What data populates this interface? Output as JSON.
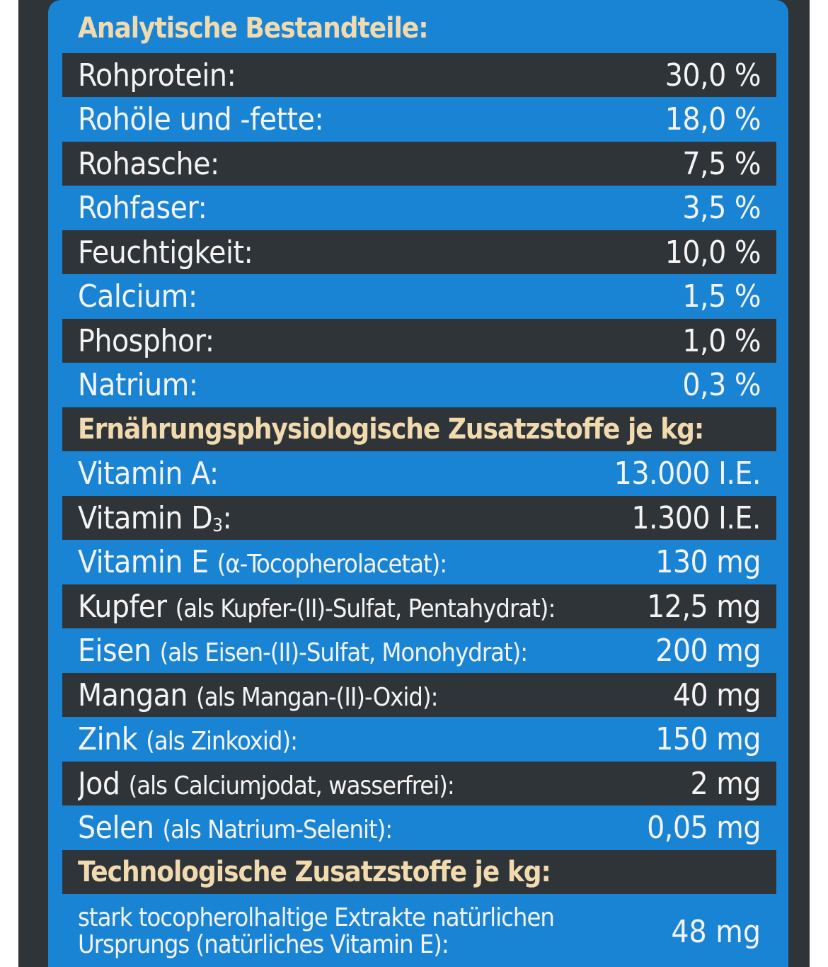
{
  "analytic": {
    "heading": "Analytische Bestandteile:",
    "rows": [
      {
        "label": "Rohprotein:",
        "value": "30,0 %"
      },
      {
        "label": "Rohöle und -fette:",
        "value": "18,0 %"
      },
      {
        "label": "Rohasche:",
        "value": "7,5 %"
      },
      {
        "label": "Rohfaser:",
        "value": "3,5 %"
      },
      {
        "label": "Feuchtigkeit:",
        "value": "10,0 %"
      },
      {
        "label": "Calcium:",
        "value": "1,5 %"
      },
      {
        "label": "Phosphor:",
        "value": "1,0 %"
      },
      {
        "label": "Natrium:",
        "value": "0,3 %"
      }
    ]
  },
  "nutritional": {
    "heading": "Ernährungsphysiologische Zusatzstoffe je kg:",
    "vitA": {
      "label": "Vitamin A:",
      "value": "13.000 I.E."
    },
    "vitD": {
      "label_main": "Vitamin D",
      "label_sub": "3",
      "label_end": ":",
      "value": "1.300 I.E."
    },
    "rows": [
      {
        "main": "Vitamin E ",
        "detail": "(α-Tocopherolacetat):",
        "value": "130 mg"
      },
      {
        "main": "Kupfer ",
        "detail": "(als Kupfer-(II)-Sulfat, Pentahydrat):",
        "value": "12,5 mg"
      },
      {
        "main": "Eisen ",
        "detail": "(als Eisen-(II)-Sulfat, Monohydrat):",
        "value": "200 mg"
      },
      {
        "main": "Mangan ",
        "detail": "(als Mangan-(II)-Oxid):",
        "value": "40 mg"
      },
      {
        "main": "Zink ",
        "detail": "(als Zinkoxid):",
        "value": "150 mg"
      },
      {
        "main": "Jod ",
        "detail": "(als Calciumjodat, wasserfrei):",
        "value": "2 mg"
      },
      {
        "main": "Selen ",
        "detail": "(als Natrium-Selenit):",
        "value": "0,05 mg"
      }
    ]
  },
  "technological": {
    "heading": "Technologische Zusatzstoffe je kg:",
    "line1": "stark tocopherolhaltige Extrakte natürlichen",
    "line2": "Ursprungs (natürliches Vitamin E):",
    "value": "48 mg"
  }
}
